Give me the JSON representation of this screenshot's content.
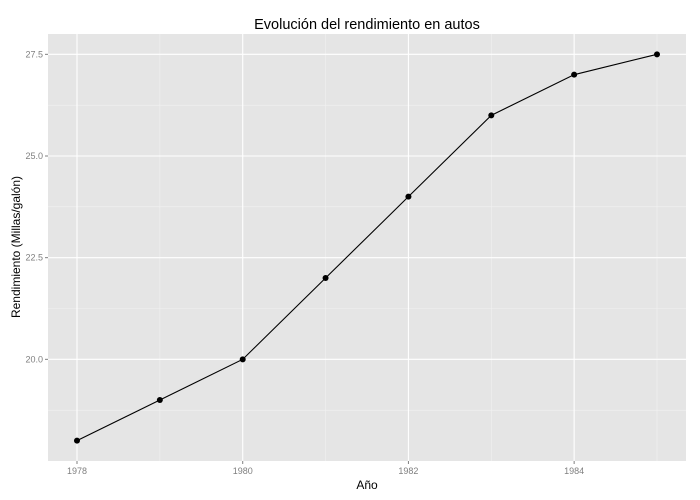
{
  "chart_data": {
    "type": "line",
    "title": "Evolución del rendimiento en autos",
    "xlabel": "Año",
    "ylabel": "Rendimiento (Millas/galón)",
    "x": [
      1978,
      1979,
      1980,
      1981,
      1982,
      1983,
      1984,
      1985
    ],
    "series": [
      {
        "values": [
          18,
          19,
          20,
          22,
          24,
          26,
          27,
          27.5
        ]
      }
    ],
    "xlim": [
      1977.65,
      1985.35
    ],
    "ylim": [
      17.5,
      28.0
    ],
    "xticks": [
      1978,
      1980,
      1982,
      1984
    ],
    "xtick_labels": [
      "1978",
      "1980",
      "1982",
      "1984"
    ],
    "yticks": [
      20.0,
      22.5,
      25.0,
      27.5
    ],
    "ytick_labels": [
      "20.0",
      "22.5",
      "25.0",
      "27.5"
    ],
    "grid": true,
    "legend": "none",
    "colors": {
      "panel_bg": "#e5e5e5",
      "grid_major": "#ffffff",
      "grid_minor": "#f2f2f2",
      "line": "#000000",
      "point": "#000000"
    }
  }
}
